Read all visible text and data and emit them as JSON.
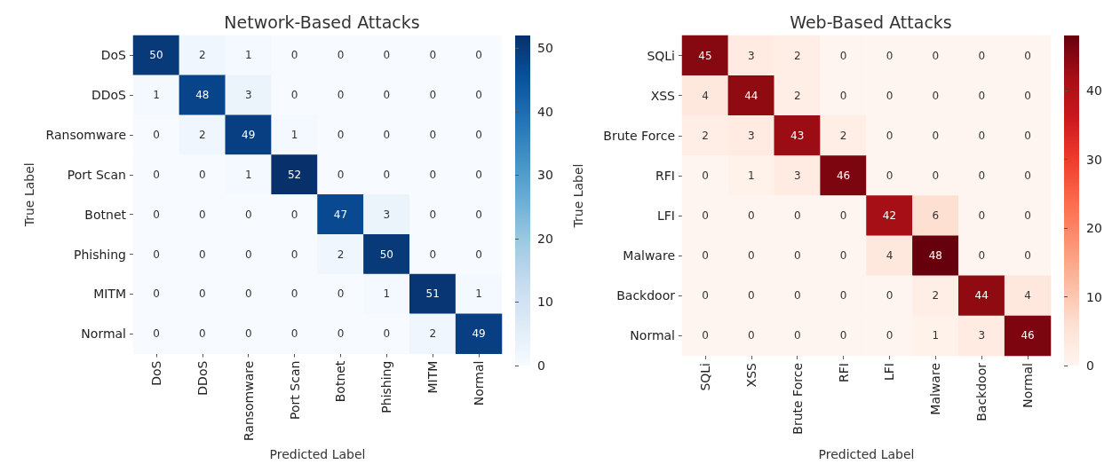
{
  "chart_data": [
    {
      "type": "heatmap",
      "title": "Network-Based Attacks",
      "xlabel": "Predicted Label",
      "ylabel": "True Label",
      "categories": [
        "DoS",
        "DDoS",
        "Ransomware",
        "Port Scan",
        "Botnet",
        "Phishing",
        "MITM",
        "Normal"
      ],
      "y_categories": [
        "DoS",
        "DDoS",
        "Ransomware",
        "Port Scan",
        "Botnet",
        "Phishing",
        "MITM",
        "Normal"
      ],
      "cells": [
        [
          50,
          2,
          1,
          0,
          0,
          0,
          0,
          0
        ],
        [
          1,
          48,
          3,
          0,
          0,
          0,
          0,
          0
        ],
        [
          0,
          2,
          49,
          1,
          0,
          0,
          0,
          0
        ],
        [
          0,
          0,
          1,
          52,
          0,
          0,
          0,
          0
        ],
        [
          0,
          0,
          0,
          0,
          47,
          3,
          0,
          0
        ],
        [
          0,
          0,
          0,
          0,
          2,
          50,
          0,
          0
        ],
        [
          0,
          0,
          0,
          0,
          0,
          1,
          51,
          1
        ],
        [
          0,
          0,
          0,
          0,
          0,
          0,
          2,
          49
        ]
      ],
      "clim": [
        0,
        52
      ],
      "cticks": [
        0,
        10,
        20,
        30,
        40,
        50
      ],
      "data_labels": true
    },
    {
      "type": "heatmap",
      "title": "Web-Based Attacks",
      "xlabel": "Predicted Label",
      "ylabel": "True Label",
      "categories": [
        "SQLi",
        "XSS",
        "Brute Force",
        "RFI",
        "LFI",
        "Malware",
        "Backdoor",
        "Normal"
      ],
      "y_categories": [
        "SQLi",
        "XSS",
        "Brute Force",
        "RFI",
        "LFI",
        "Malware",
        "Backdoor",
        "Normal"
      ],
      "cells": [
        [
          45,
          3,
          2,
          0,
          0,
          0,
          0,
          0
        ],
        [
          4,
          44,
          2,
          0,
          0,
          0,
          0,
          0
        ],
        [
          2,
          3,
          43,
          2,
          0,
          0,
          0,
          0
        ],
        [
          0,
          1,
          3,
          46,
          0,
          0,
          0,
          0
        ],
        [
          0,
          0,
          0,
          0,
          42,
          6,
          0,
          0
        ],
        [
          0,
          0,
          0,
          0,
          4,
          48,
          0,
          0
        ],
        [
          0,
          0,
          0,
          0,
          0,
          2,
          44,
          4
        ],
        [
          0,
          0,
          0,
          0,
          0,
          1,
          3,
          46
        ]
      ],
      "clim": [
        0,
        48
      ],
      "cticks": [
        0,
        10,
        20,
        30,
        40
      ],
      "data_labels": true
    }
  ]
}
